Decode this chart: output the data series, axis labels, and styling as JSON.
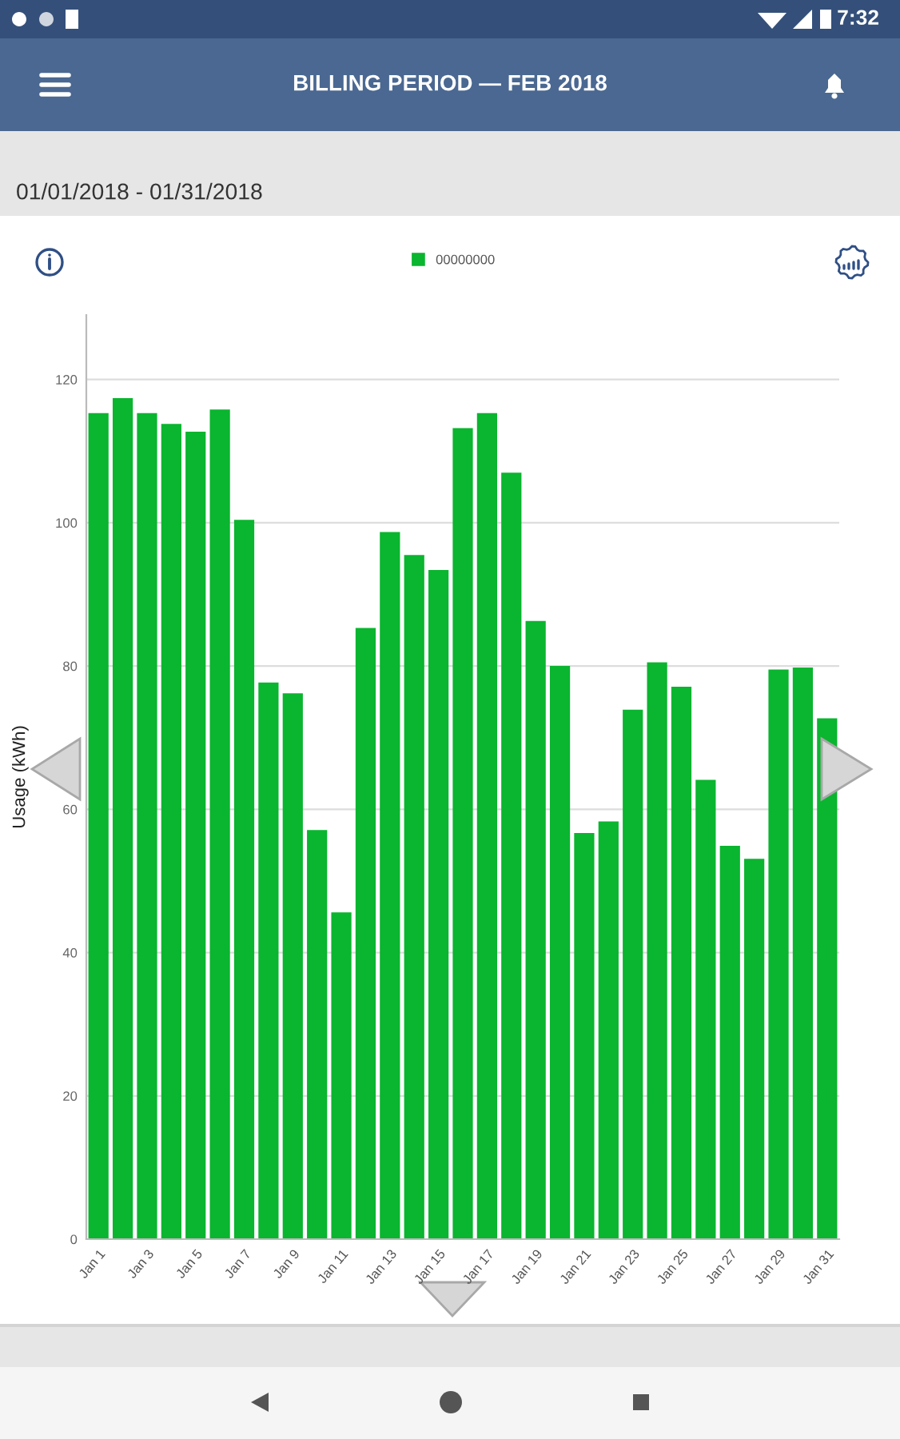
{
  "chart_data": {
    "type": "bar",
    "title": "BILLING PERIOD — FEB 2018",
    "subtitle": "01/01/2018 - 01/31/2018",
    "ylabel": "Usage (kWh)",
    "annotations": [
      "7:32"
    ],
    "categories": [
      "Jan 1",
      null,
      "Jan 3",
      null,
      "Jan 5",
      null,
      "Jan 7",
      null,
      "Jan 9",
      null,
      "Jan 11",
      null,
      "Jan 13",
      null,
      "Jan 15",
      null,
      "Jan 17",
      null,
      "Jan 19",
      null,
      "Jan 21",
      null,
      "Jan 23",
      null,
      "Jan 25",
      null,
      "Jan 27",
      null,
      "Jan 29",
      null,
      "Jan 31"
    ],
    "series": [
      {
        "name": "00000000",
        "color": "#0ab52f",
        "values": [
          115.3,
          117.4,
          115.3,
          113.8,
          112.7,
          115.8,
          100.4,
          77.7,
          76.2,
          57.1,
          45.6,
          85.3,
          98.7,
          95.5,
          93.4,
          113.2,
          115.3,
          107.0,
          86.3,
          80.0,
          56.7,
          58.3,
          73.9,
          80.5,
          77.1,
          64.1,
          54.9,
          53.1,
          79.5,
          79.8,
          72.7
        ]
      }
    ],
    "ylim": [
      0,
      129
    ],
    "yticks": [
      0,
      20,
      40,
      60,
      80,
      100,
      120
    ],
    "grid": "y",
    "legend": "top"
  }
}
